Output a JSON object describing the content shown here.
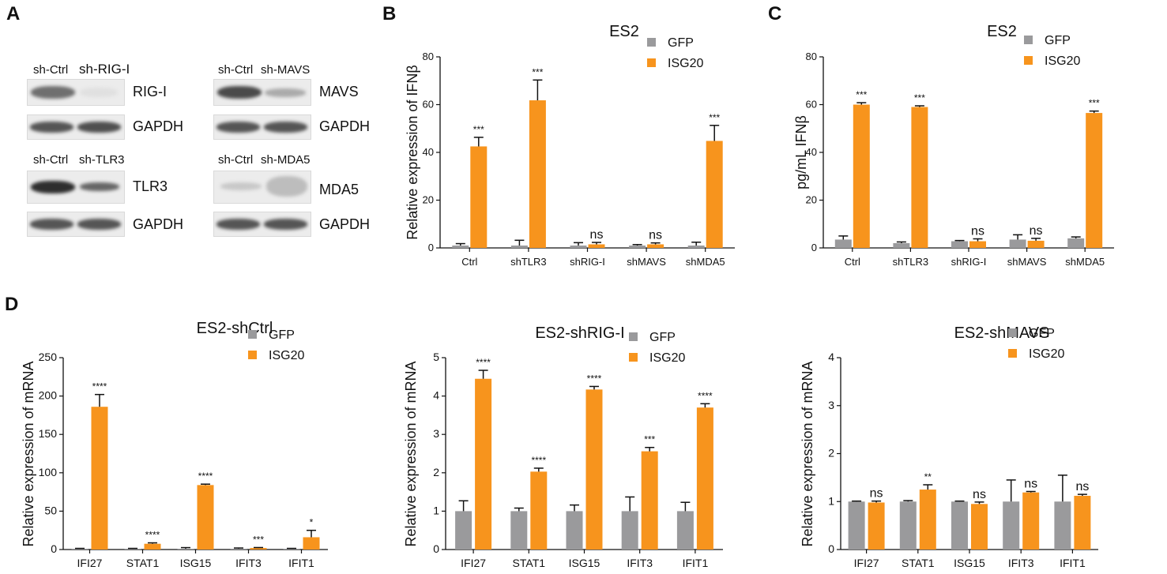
{
  "panel_labels": [
    "A",
    "B",
    "C",
    "D"
  ],
  "blots": [
    {
      "ctrl": "sh-Ctrl",
      "kd": "sh-RIG-I",
      "target": "RIG-I",
      "loading": "GAPDH"
    },
    {
      "ctrl": "sh-Ctrl",
      "kd": "sh-MAVS",
      "target": "MAVS",
      "loading": "GAPDH"
    },
    {
      "ctrl": "sh-Ctrl",
      "kd": "sh-TLR3",
      "target": "TLR3",
      "loading": "GAPDH"
    },
    {
      "ctrl": "sh-Ctrl",
      "kd": "sh-MDA5",
      "target": "MDA5",
      "loading": "GAPDH"
    }
  ],
  "colors": {
    "gfp": "#9a9a9c",
    "isg20": "#f7941d",
    "axis": "#111111"
  },
  "chart_data": [
    {
      "id": "B",
      "type": "bar",
      "title": "ES2",
      "ylabel": "Relative expression of IFNβ",
      "xlabel": "",
      "ylim": [
        0,
        80
      ],
      "yticks": [
        0,
        20,
        40,
        60,
        80
      ],
      "categories": [
        "Ctrl",
        "shTLR3",
        "shRIG-I",
        "shMAVS",
        "shMDA5"
      ],
      "series": [
        {
          "name": "GFP",
          "values": [
            1,
            1,
            1,
            1,
            1
          ],
          "errors": [
            0.8,
            2.2,
            1.2,
            0.4,
            1.4
          ]
        },
        {
          "name": "ISG20",
          "values": [
            42.5,
            61.8,
            1.5,
            1.5,
            44.8
          ],
          "errors": [
            3.8,
            8.5,
            0.8,
            0.6,
            6.5
          ]
        }
      ],
      "annotations": [
        "***",
        "***",
        "ns",
        "ns",
        "***"
      ],
      "legend": "top-right"
    },
    {
      "id": "C",
      "type": "bar",
      "title": "ES2",
      "ylabel": "pg/mL IFNβ",
      "xlabel": "",
      "ylim": [
        0,
        80
      ],
      "yticks": [
        0,
        20,
        40,
        60,
        80
      ],
      "categories": [
        "Ctrl",
        "shTLR3",
        "shRIG-I",
        "shMAVS",
        "shMDA5"
      ],
      "series": [
        {
          "name": "GFP",
          "values": [
            3.5,
            2,
            2.8,
            3.5,
            4
          ],
          "errors": [
            1.5,
            0.5,
            0.3,
            2.0,
            0.6
          ]
        },
        {
          "name": "ISG20",
          "values": [
            60,
            59,
            2.8,
            3,
            56.5
          ],
          "errors": [
            0.8,
            0.5,
            1.0,
            1.0,
            0.8
          ]
        }
      ],
      "annotations": [
        "***",
        "***",
        "ns",
        "ns",
        "***"
      ],
      "legend": "top-right"
    },
    {
      "id": "D1",
      "type": "bar",
      "title": "ES2-shCtrl",
      "ylabel": "Relative expression of mRNA",
      "xlabel": "",
      "ylim": [
        0,
        250
      ],
      "yticks": [
        0,
        50,
        100,
        150,
        200,
        250
      ],
      "categories": [
        "IFI27",
        "STAT1",
        "ISG15",
        "IFIT3",
        "IFIT1"
      ],
      "series": [
        {
          "name": "GFP",
          "values": [
            1,
            1,
            1,
            1,
            1
          ],
          "errors": [
            0.5,
            0.5,
            1.5,
            1.0,
            0.5
          ]
        },
        {
          "name": "ISG20",
          "values": [
            186,
            7.5,
            84,
            2,
            16
          ],
          "errors": [
            16,
            1.2,
            1.2,
            0.6,
            9
          ]
        }
      ],
      "annotations": [
        "****",
        "****",
        "****",
        "***",
        "*"
      ],
      "legend": "top-right"
    },
    {
      "id": "D2",
      "type": "bar",
      "title": "ES2-shRIG-I",
      "ylabel": "Relative expression of mRNA",
      "xlabel": "",
      "ylim": [
        0,
        5
      ],
      "yticks": [
        0,
        1,
        2,
        3,
        4,
        5
      ],
      "categories": [
        "IFI27",
        "STAT1",
        "ISG15",
        "IFIT3",
        "IFIT1"
      ],
      "series": [
        {
          "name": "GFP",
          "values": [
            1,
            1,
            1,
            1,
            1
          ],
          "errors": [
            0.27,
            0.08,
            0.16,
            0.37,
            0.23
          ]
        },
        {
          "name": "ISG20",
          "values": [
            4.45,
            2.03,
            4.17,
            2.56,
            3.7
          ],
          "errors": [
            0.22,
            0.09,
            0.08,
            0.1,
            0.1
          ]
        }
      ],
      "annotations": [
        "****",
        "****",
        "****",
        "***",
        "****"
      ],
      "legend": "top-right"
    },
    {
      "id": "D3",
      "type": "bar",
      "title": "ES2-shMAVS",
      "ylabel": "Relative expression of mRNA",
      "xlabel": "",
      "ylim": [
        0,
        4
      ],
      "yticks": [
        0,
        1,
        2,
        3,
        4
      ],
      "categories": [
        "IFI27",
        "STAT1",
        "ISG15",
        "IFIT3",
        "IFIT1"
      ],
      "series": [
        {
          "name": "GFP",
          "values": [
            1,
            1,
            1,
            1,
            1
          ],
          "errors": [
            0.01,
            0.02,
            0.01,
            0.45,
            0.55
          ]
        },
        {
          "name": "ISG20",
          "values": [
            0.98,
            1.25,
            0.95,
            1.19,
            1.12
          ],
          "errors": [
            0.03,
            0.1,
            0.04,
            0.02,
            0.03
          ]
        }
      ],
      "annotations": [
        "ns",
        "**",
        "ns",
        "ns",
        "ns"
      ],
      "legend": "top-right"
    }
  ]
}
